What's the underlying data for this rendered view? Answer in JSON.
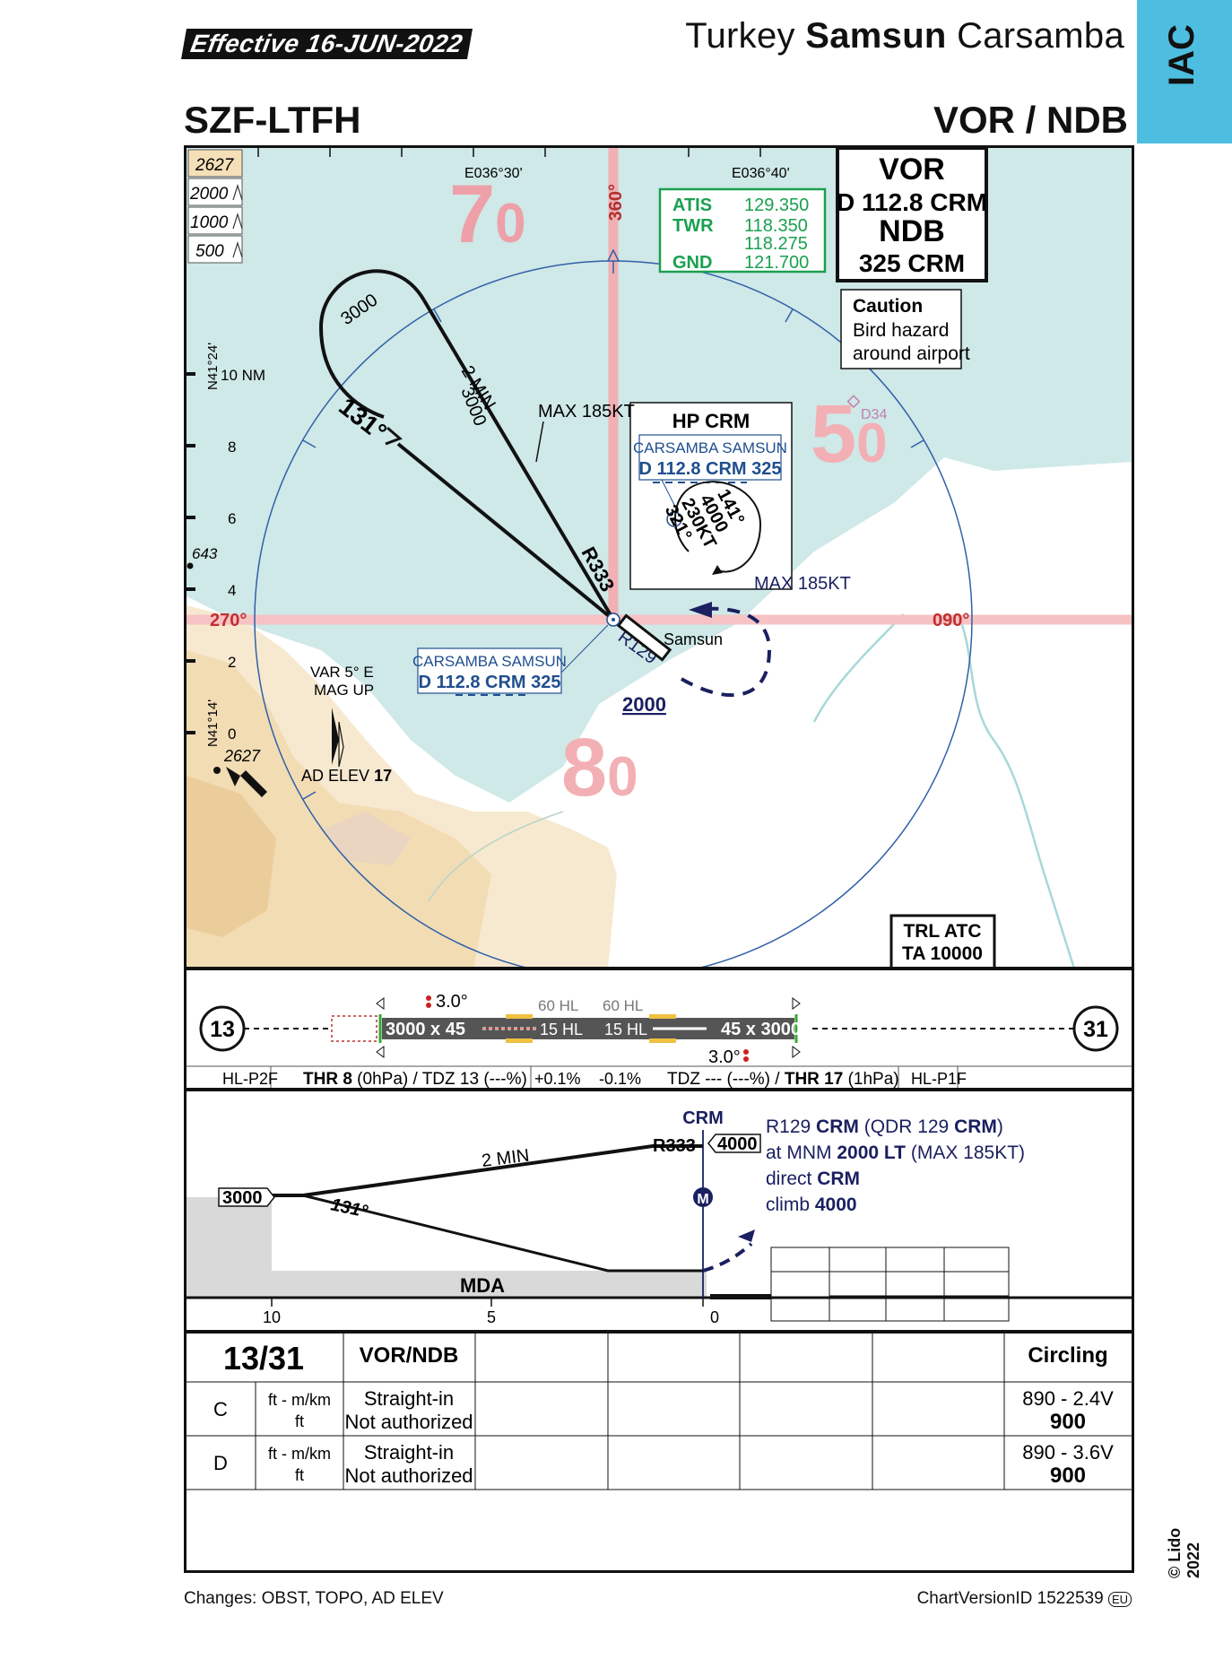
{
  "header": {
    "effective": "Effective 16-JUN-2022",
    "country": "Turkey",
    "city": "Samsun",
    "airport": "Carsamba",
    "tag": "IAC",
    "ident": "SZF-LTFH",
    "procedure": "VOR / NDB"
  },
  "plan": {
    "elevation_legend": [
      "2627",
      "2000",
      "1000",
      "500"
    ],
    "lon_labels": [
      "E036°30'",
      "E036°40'"
    ],
    "lat_labels": [
      "N41°24'",
      "N41°14'"
    ],
    "range_labels": [
      "10 NM",
      "8",
      "6",
      "4",
      "2",
      "0"
    ],
    "msa_numbers": [
      {
        "big": "7",
        "small": "0"
      },
      {
        "big": "5",
        "small": "0"
      },
      {
        "big": "8",
        "small": "0"
      }
    ],
    "bearings": [
      "360°",
      "270°",
      "090°"
    ],
    "nav_box": {
      "l1": "VOR",
      "l2": "D 112.8 CRM",
      "l3": "NDB",
      "l4": "325 CRM"
    },
    "freq": [
      {
        "name": "ATIS",
        "value": "129.350"
      },
      {
        "name": "TWR",
        "value": "118.350"
      },
      {
        "name": "",
        "value": "118.275"
      },
      {
        "name": "GND",
        "value": "121.700"
      }
    ],
    "caution": {
      "title": "Caution",
      "l1": "Bird hazard",
      "l2": "around airport"
    },
    "hold": {
      "title": "HP CRM",
      "nav1": "CARSAMBA SAMSUN",
      "nav2": "D 112.8 CRM 325",
      "inbound": "141°",
      "alt": "4000",
      "speed": "230KT",
      "outbound": "321°"
    },
    "nav_label": {
      "l1": "CARSAMBA SAMSUN",
      "l2": "D 112.8 CRM 325"
    },
    "turn_alt": "3000",
    "leg_alt": "3000",
    "leg_time": "2 MIN",
    "course": "131°",
    "max_speed": "MAX 185KT",
    "radial_in": "R333",
    "radial_out": "R129",
    "ma_speed": "MAX 185KT",
    "ma_alt": "2000",
    "obstacle_d34": "D34",
    "obstacle_643": "643",
    "obstacle_2627": "2627",
    "town": "Samsun",
    "var": {
      "l1": "VAR 5° E",
      "l2": "MAG UP"
    },
    "ad_elev_label": "AD ELEV",
    "ad_elev": "17",
    "trl": {
      "l1": "TRL ATC",
      "l2": "TA 10000"
    }
  },
  "runway": {
    "rwy_left": "13",
    "rwy_right": "31",
    "dims_left": "3000 x 45",
    "dims_right": "45 x 3000",
    "hl_left": "15 HL",
    "hl_right": "15 HL",
    "hl60_left": "60 HL",
    "hl60_right": "60 HL",
    "papi_left": "3.0°",
    "papi_right": "3.0°",
    "light_left": "HL-P2F",
    "light_right": "HL-P1F",
    "thr_left_b": "THR 8",
    "thr_left": " (0hPa) / TDZ 13 (---%)",
    "thr_right": "TDZ --- (---%) / ",
    "thr_right_b": "THR 17",
    "thr_right_2": " (1hPa)",
    "slope_left": "+0.1%",
    "slope_right": "-0.1%"
  },
  "profile": {
    "crm": "CRM",
    "alt_3000": "3000",
    "alt_4000": "4000",
    "time": "2 MIN",
    "radial": "R333",
    "course": "131°",
    "mda": "MDA",
    "marker": "M",
    "dist": [
      "10",
      "5",
      "0"
    ],
    "ma_text": [
      {
        "a": "R129 ",
        "b": "CRM",
        "c": " (QDR 129 ",
        "d": "CRM",
        "e": ")"
      },
      {
        "a": "at MNM ",
        "b": "2000 LT",
        "c": " (MAX 185KT)",
        "d": "",
        "e": ""
      },
      {
        "a": "direct ",
        "b": "CRM",
        "c": "",
        "d": "",
        "e": ""
      },
      {
        "a": "climb ",
        "b": "4000",
        "c": "",
        "d": "",
        "e": ""
      }
    ]
  },
  "minima": {
    "rwy": "13/31",
    "type": "VOR/NDB",
    "circling": "Circling",
    "rows": [
      {
        "cat": "C",
        "unit1": "ft - m/km",
        "unit2": "ft",
        "si1": "Straight-in",
        "si2": "Not authorized",
        "circ1": "890 - 2.4V",
        "circ2": "900"
      },
      {
        "cat": "D",
        "unit1": "ft - m/km",
        "unit2": "ft",
        "si1": "Straight-in",
        "si2": "Not authorized",
        "circ1": "890 - 3.6V",
        "circ2": "900"
      }
    ]
  },
  "footer": {
    "changes": "Changes: OBST, TOPO, AD ELEV",
    "version": "ChartVersionID 1522539",
    "version_tag": "EU",
    "copyright": "© Lido 2022"
  },
  "colors": {
    "water": "#cfe8e8",
    "terrain1": "#f5dfb8",
    "terrain2": "#ecd2a4",
    "msa": "#eda0a8",
    "course_line": "#f4b5b8",
    "ma_path": "#1a2060",
    "nav_text": "#1f4f8f",
    "freq_green": "#1aa050",
    "iac_blue": "#4dbde0"
  }
}
